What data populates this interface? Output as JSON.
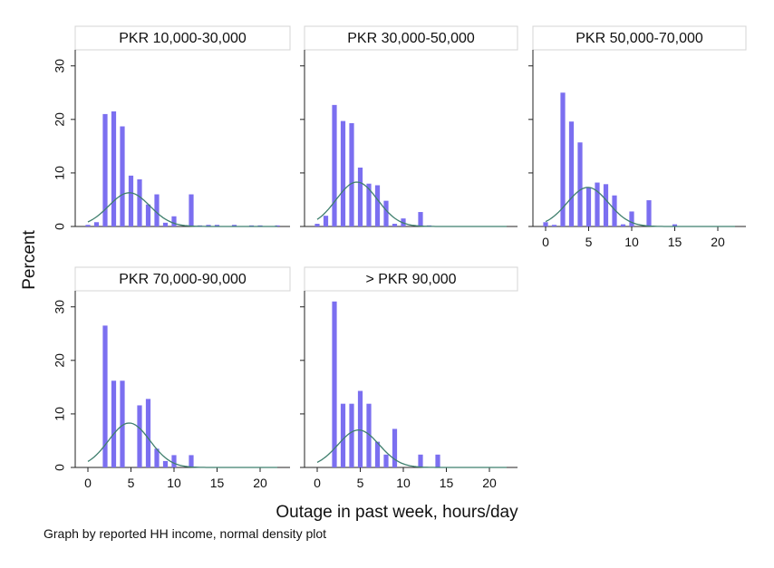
{
  "chart_data": {
    "type": "bar",
    "ylabel": "Percent",
    "xlabel": "Outage in past week, hours/day",
    "note": "Graph by reported HH income, normal density plot",
    "xlim": [
      -1,
      23
    ],
    "ylim": [
      0,
      33
    ],
    "x_ticks": [
      "0",
      "5",
      "10",
      "15",
      "20"
    ],
    "y_ticks": [
      "0",
      "10",
      "20",
      "30"
    ],
    "bar_color": "#7b6ff0",
    "curve_color": "#3f7f6e",
    "panels": [
      {
        "title": "PKR 10,000-30,000",
        "bars": [
          [
            0,
            0.3
          ],
          [
            1,
            0.8
          ],
          [
            2,
            21
          ],
          [
            3,
            21.5
          ],
          [
            4,
            18.7
          ],
          [
            5,
            9.5
          ],
          [
            6,
            8.8
          ],
          [
            7,
            4.1
          ],
          [
            8,
            6
          ],
          [
            9,
            0.7
          ],
          [
            10,
            1.9
          ],
          [
            12,
            6
          ],
          [
            13,
            0.2
          ],
          [
            14,
            0.3
          ],
          [
            15,
            0.3
          ],
          [
            17,
            0.3
          ],
          [
            19,
            0.2
          ],
          [
            20,
            0.2
          ],
          [
            22,
            0.2
          ]
        ],
        "normal": {
          "mean": 4.8,
          "peak": 6.3
        }
      },
      {
        "title": "PKR 30,000-50,000",
        "bars": [
          [
            0,
            0.5
          ],
          [
            1,
            2
          ],
          [
            2,
            22.7
          ],
          [
            3,
            19.7
          ],
          [
            4,
            19.3
          ],
          [
            5,
            11
          ],
          [
            6,
            8
          ],
          [
            7,
            7.7
          ],
          [
            8,
            4.8
          ],
          [
            9,
            0.5
          ],
          [
            10,
            1.5
          ],
          [
            12,
            2.7
          ],
          [
            13,
            0.2
          ]
        ],
        "normal": {
          "mean": 4.6,
          "peak": 8.3
        }
      },
      {
        "title": "PKR 50,000-70,000",
        "bars": [
          [
            0,
            0.8
          ],
          [
            1,
            0.3
          ],
          [
            2,
            25
          ],
          [
            3,
            19.6
          ],
          [
            4,
            15.7
          ],
          [
            5,
            7.3
          ],
          [
            6,
            8.2
          ],
          [
            7,
            7.9
          ],
          [
            8,
            5.8
          ],
          [
            9,
            0.4
          ],
          [
            10,
            2.8
          ],
          [
            12,
            4.9
          ],
          [
            15,
            0.4
          ]
        ],
        "normal": {
          "mean": 4.9,
          "peak": 7.3
        }
      },
      {
        "title": "PKR 70,000-90,000",
        "bars": [
          [
            2,
            26.5
          ],
          [
            3,
            16.2
          ],
          [
            4,
            16.2
          ],
          [
            6,
            11.6
          ],
          [
            7,
            12.8
          ],
          [
            8,
            3.5
          ],
          [
            9,
            1.2
          ],
          [
            10,
            2.3
          ],
          [
            12,
            2.3
          ]
        ],
        "normal": {
          "mean": 4.8,
          "peak": 8.3
        }
      },
      {
        "title": "> PKR 90,000",
        "bars": [
          [
            2,
            31
          ],
          [
            3,
            11.9
          ],
          [
            4,
            11.9
          ],
          [
            5,
            14.3
          ],
          [
            6,
            11.9
          ],
          [
            7,
            4.8
          ],
          [
            8,
            2.4
          ],
          [
            9,
            7.2
          ],
          [
            12,
            2.4
          ],
          [
            14,
            2.4
          ]
        ],
        "normal": {
          "mean": 4.8,
          "peak": 7
        }
      }
    ]
  }
}
